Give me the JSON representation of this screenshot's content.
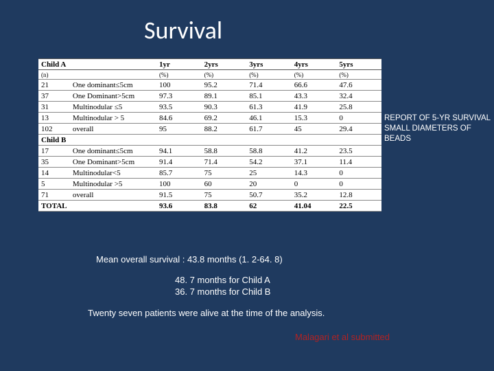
{
  "title": "Survival",
  "side_note_l1": "REPORT OF 5-YR SURVIVAL",
  "side_note_l2": "SMALL DIAMETERS OF BEADS",
  "mean_text": "Mean overall survival : 43.8 months (1. 2-64. 8)",
  "sub1": "48. 7 months for Child A",
  "sub2": "36. 7 months for Child B",
  "twenty_text": "Twenty seven patients were alive at the time of the analysis.",
  "citation": "Malagari et al submitted",
  "table": {
    "headers": [
      "Child A",
      "",
      "1yr",
      "2yrs",
      "3yrs",
      "4yrs",
      "5yrs"
    ],
    "subheaders": [
      "(n)",
      "",
      "(%)",
      "(%)",
      "(%)",
      "(%)",
      "(%)"
    ],
    "rowsA": [
      [
        "21",
        "One dominant≤5cm",
        "100",
        "95.2",
        "71.4",
        "66.6",
        "47.6"
      ],
      [
        "37",
        "One Dominant>5cm",
        "97.3",
        "89.1",
        "85.1",
        "43.3",
        "32.4"
      ],
      [
        "31",
        "Multinodular ≤5",
        "93.5",
        "90.3",
        "61.3",
        "41.9",
        "25.8"
      ],
      [
        "13",
        "Multinodular > 5",
        "84.6",
        "69.2",
        "46.1",
        "15.3",
        "0"
      ],
      [
        "102",
        "overall",
        "95",
        "88.2",
        "61.7",
        "45",
        "29.4"
      ]
    ],
    "sectionB": "Child B",
    "rowsB": [
      [
        "17",
        "One dominant≤5cm",
        "94.1",
        "58.8",
        "58.8",
        "41.2",
        "23.5"
      ],
      [
        "35",
        "One Dominant>5cm",
        "91.4",
        "71.4",
        "54.2",
        "37.1",
        "11.4"
      ],
      [
        "14",
        "Multinodular<5",
        "85.7",
        "75",
        "25",
        "14.3",
        "0"
      ],
      [
        "5",
        "Multinodular >5",
        "100",
        "60",
        "20",
        "0",
        "0"
      ],
      [
        "71",
        "overall",
        "91.5",
        "75",
        "50.7",
        "35.2",
        "12.8"
      ]
    ],
    "total": [
      "TOTAL",
      "",
      "93.6",
      "83.8",
      "62",
      "41.04",
      "22.5"
    ]
  },
  "colors": {
    "background": "#1f3a5f",
    "text_white": "#ffffff",
    "citation": "#b22222",
    "table_bg": "#ffffff"
  }
}
